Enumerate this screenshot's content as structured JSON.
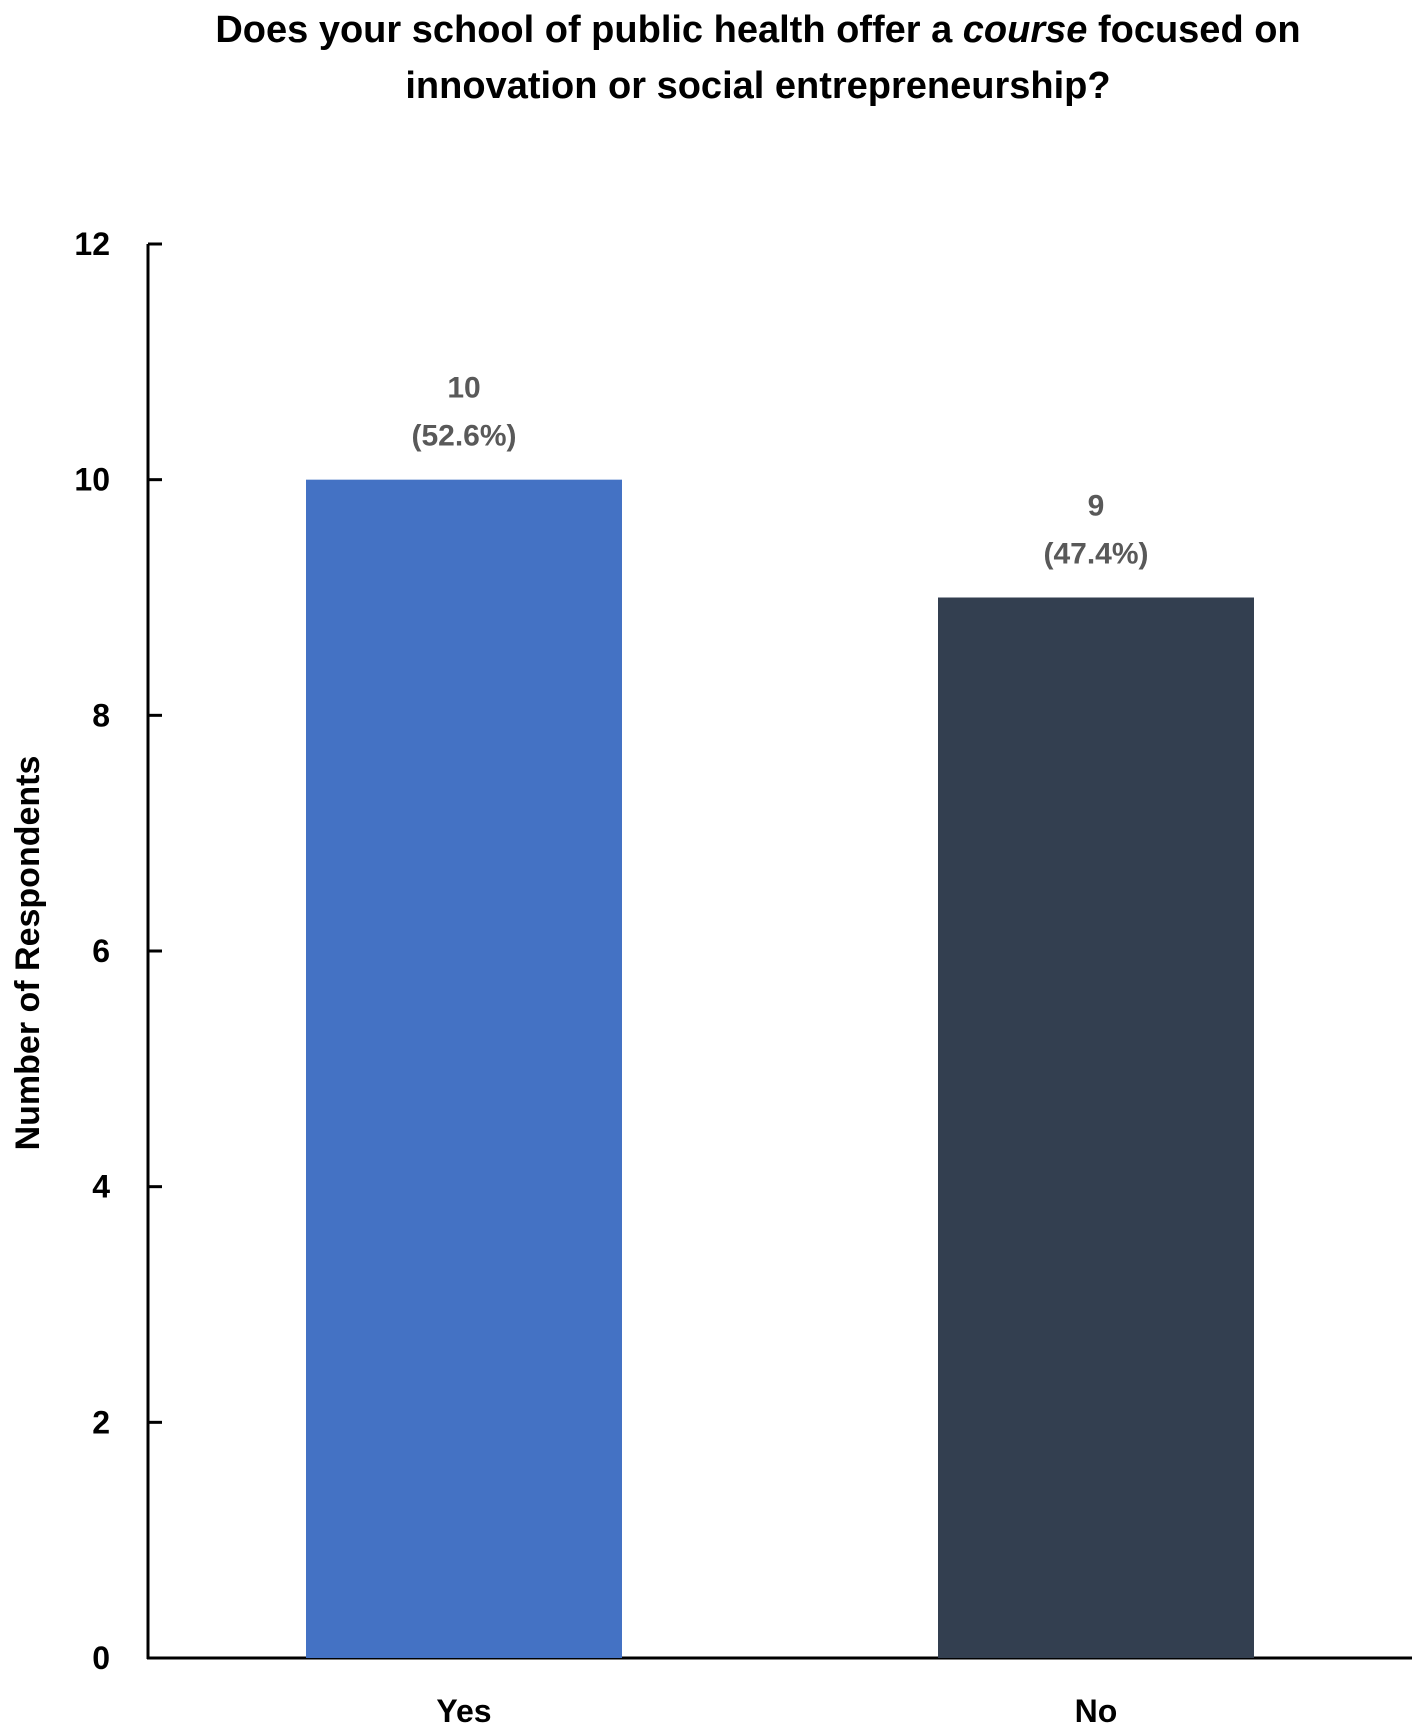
{
  "chart_data": {
    "type": "bar",
    "title_parts": [
      "Does your school of public health offer a ",
      "course",
      " focused on",
      "innovation or social entrepreneurship?"
    ],
    "xlabel": "",
    "ylabel": "Number of Respondents",
    "categories": [
      "Yes",
      "No"
    ],
    "values": [
      10,
      9
    ],
    "value_labels": [
      "10",
      "9"
    ],
    "percent_labels": [
      "(52.6%)",
      "(47.4%)"
    ],
    "ylim": [
      0,
      12
    ],
    "yticks": [
      "0",
      "2",
      "4",
      "6",
      "8",
      "10",
      "12"
    ],
    "colors": [
      "#4472C4",
      "#333F50"
    ],
    "label_color": "#595959",
    "grid": false,
    "legend": "none"
  }
}
